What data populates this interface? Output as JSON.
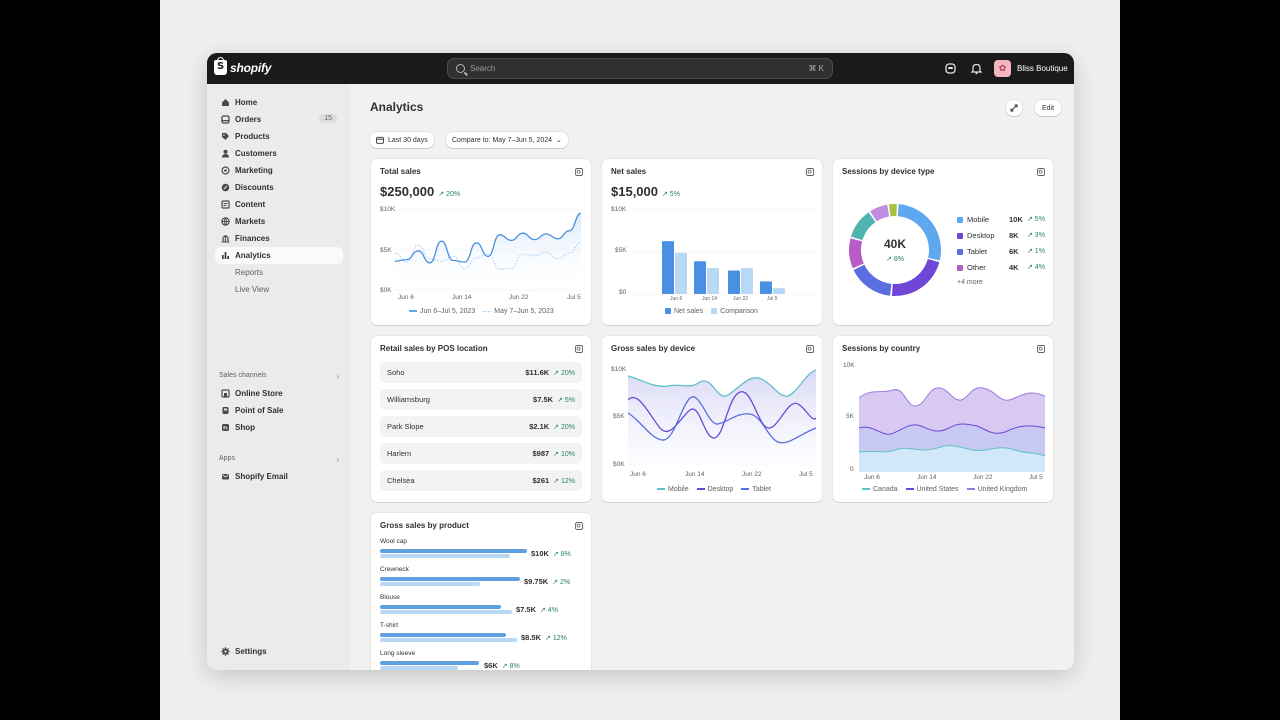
{
  "topbar": {
    "brand": "shopify",
    "search_placeholder": "Search",
    "search_shortcut": "⌘ K",
    "store_name": "Bliss Boutique"
  },
  "sidebar": {
    "items": [
      {
        "label": "Home",
        "icon": "home-icon"
      },
      {
        "label": "Orders",
        "icon": "orders-icon",
        "badge": "15"
      },
      {
        "label": "Products",
        "icon": "tag-icon"
      },
      {
        "label": "Customers",
        "icon": "person-icon"
      },
      {
        "label": "Marketing",
        "icon": "target-icon"
      },
      {
        "label": "Discounts",
        "icon": "discount-icon"
      },
      {
        "label": "Content",
        "icon": "content-icon"
      },
      {
        "label": "Markets",
        "icon": "globe-icon"
      },
      {
        "label": "Finances",
        "icon": "bank-icon"
      },
      {
        "label": "Analytics",
        "icon": "chart-icon",
        "active": true
      }
    ],
    "sub_items": [
      "Reports",
      "Live View"
    ],
    "sales_channels_title": "Sales channels",
    "channels": [
      {
        "label": "Online Store",
        "icon": "store-icon"
      },
      {
        "label": "Point of Sale",
        "icon": "pos-icon"
      },
      {
        "label": "Shop",
        "icon": "shop-icon"
      }
    ],
    "apps_title": "Apps",
    "apps": [
      {
        "label": "Shopify Email",
        "icon": "email-icon"
      }
    ],
    "settings_label": "Settings"
  },
  "header": {
    "title": "Analytics",
    "edit_label": "Edit",
    "date_filter": "Last 30 days",
    "compare_filter": "Compare to: May 7–Jun 5, 2024"
  },
  "total_sales": {
    "title": "Total sales",
    "value": "$250,000",
    "delta": "↗ 20%",
    "y_ticks": [
      "$10K",
      "$5K",
      "$0K"
    ],
    "x_ticks": [
      "Jun 6",
      "Jun 14",
      "Jun 22",
      "Jul 5"
    ],
    "legend_current": "Jun 6–Jul 5, 2023",
    "legend_compare": "May 7–Jun 5, 2023"
  },
  "net_sales": {
    "title": "Net sales",
    "value": "$15,000",
    "delta": "↗ 5%",
    "y_ticks": [
      "$10K",
      "$5K",
      "$0"
    ],
    "x_ticks": [
      "Jun 6",
      "Jun 14",
      "Jun 22",
      "Jul 5"
    ],
    "legend_net": "Net sales",
    "legend_compare": "Comparison"
  },
  "device_sessions": {
    "title": "Sessions by device type",
    "total": "40K",
    "total_delta": "↗ 8%",
    "more": "+4 more",
    "rows": [
      {
        "label": "Mobile",
        "value": "10K",
        "delta": "↗ 5%"
      },
      {
        "label": "Desktop",
        "value": "8K",
        "delta": "↗ 3%"
      },
      {
        "label": "Tablet",
        "value": "6K",
        "delta": "↗ 1%"
      },
      {
        "label": "Other",
        "value": "4K",
        "delta": "↗ 4%"
      }
    ]
  },
  "pos_sales": {
    "title": "Retail sales by POS location",
    "rows": [
      {
        "name": "Soho",
        "value": "$11.6K",
        "delta": "↗ 20%"
      },
      {
        "name": "Williamsburg",
        "value": "$7.5K",
        "delta": "↗ 5%"
      },
      {
        "name": "Park Slope",
        "value": "$2.1K",
        "delta": "↗ 20%"
      },
      {
        "name": "Harlem",
        "value": "$987",
        "delta": "↗ 10%"
      },
      {
        "name": "Chelsea",
        "value": "$261",
        "delta": "↗ 12%"
      }
    ]
  },
  "gross_device": {
    "title": "Gross sales by device",
    "y_ticks": [
      "$10K",
      "$5K",
      "$0K"
    ],
    "x_ticks": [
      "Jun 6",
      "Jun 14",
      "Jun 22",
      "Jul 5"
    ],
    "legend": [
      "Mobile",
      "Desktop",
      "Tablet"
    ]
  },
  "country_sessions": {
    "title": "Sessions by country",
    "y_ticks": [
      "10K",
      "5K",
      "0"
    ],
    "x_ticks": [
      "Jun 6",
      "Jun 14",
      "Jun 22",
      "Jul 5"
    ],
    "legend": [
      "Canada",
      "United States",
      "United Kingdom"
    ]
  },
  "gross_product": {
    "title": "Gross sales by product",
    "rows": [
      {
        "name": "Wool cap",
        "value": "$10K",
        "delta": "↗ 8%"
      },
      {
        "name": "Crewneck",
        "value": "$9.75K",
        "delta": "↗ 2%"
      },
      {
        "name": "Blouse",
        "value": "$7.5K",
        "delta": "↗ 4%"
      },
      {
        "name": "T-shirt",
        "value": "$8.5K",
        "delta": "↗ 12%"
      },
      {
        "name": "Long sleeve",
        "value": "$6K",
        "delta": "↗ 8%"
      }
    ]
  },
  "chart_data": [
    {
      "type": "line",
      "title": "Total sales",
      "ylim": [
        0,
        10000
      ],
      "series": [
        {
          "name": "Jun 6–Jul 5, 2023",
          "values": [
            3600,
            3800,
            4900,
            3400,
            6100,
            3700,
            3500,
            5900,
            4200,
            6900,
            6200,
            7100,
            6300,
            7000,
            6400,
            7400,
            9600
          ]
        },
        {
          "name": "May 7–Jun 5, 2023",
          "values": [
            4600,
            3500,
            5600,
            3900,
            3600,
            4200,
            2700,
            4000,
            4500,
            2600,
            2700,
            4500,
            4300,
            4700,
            3900,
            4600,
            6000
          ]
        }
      ]
    },
    {
      "type": "bar",
      "title": "Net sales",
      "ylim": [
        0,
        10000
      ],
      "series": [
        {
          "name": "Net sales",
          "values": [
            6300,
            3900,
            2800,
            1500
          ]
        },
        {
          "name": "Comparison",
          "values": [
            4900,
            3100,
            3100,
            700
          ]
        }
      ]
    },
    {
      "type": "pie",
      "title": "Sessions by device type",
      "categories": [
        "Mobile",
        "Desktop",
        "Tablet",
        "Other",
        "More 1",
        "More 2",
        "More 3"
      ],
      "values": [
        10,
        8,
        6,
        4,
        4,
        2.5,
        1.2
      ]
    }
  ],
  "colors": {
    "accent": "#4a90e2",
    "mobile": "#5ea8ef",
    "desktop": "#6f47d6",
    "tablet": "#5b6ee0",
    "other": "#b85cc7",
    "teal": "#4fb3b0",
    "green": "#29845a"
  }
}
